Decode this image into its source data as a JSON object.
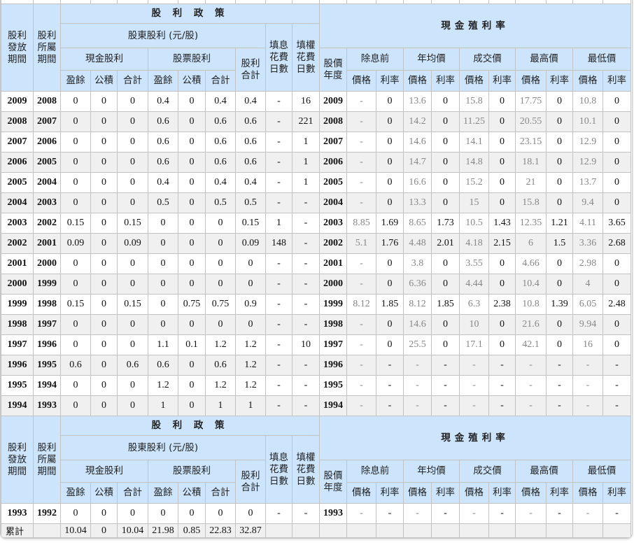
{
  "header": {
    "policy": "股 利 政 策",
    "yield": "現金殖利率",
    "issue_period": "股利發放期間",
    "belong_period": "股利所屬期間",
    "shareholder_div": "股東股利 (元/股)",
    "cash_div": "現金股利",
    "stock_div": "股票股利",
    "div_total": "股利合計",
    "fill_div_days": "填息花費日數",
    "fill_right_days": "填權花費日數",
    "price_year": "股價年度",
    "earnings": "盈餘",
    "reserve": "公積",
    "total": "合計",
    "groups": [
      "除息前",
      "年均價",
      "成交價",
      "最高價",
      "最低價"
    ],
    "price": "價格",
    "rate": "利率"
  },
  "rows_a": [
    [
      "2009",
      "2008",
      "0",
      "0",
      "0",
      "0.4",
      "0",
      "0.4",
      "0.4",
      "-",
      "16",
      "2009",
      "-",
      "0",
      "13.6",
      "0",
      "15.8",
      "0",
      "17.75",
      "0",
      "10.8",
      "0"
    ],
    [
      "2008",
      "2007",
      "0",
      "0",
      "0",
      "0.6",
      "0",
      "0.6",
      "0.6",
      "-",
      "221",
      "2008",
      "-",
      "0",
      "14.2",
      "0",
      "11.25",
      "0",
      "20.55",
      "0",
      "10.1",
      "0"
    ],
    [
      "2007",
      "2006",
      "0",
      "0",
      "0",
      "0.6",
      "0",
      "0.6",
      "0.6",
      "-",
      "1",
      "2007",
      "-",
      "0",
      "14.6",
      "0",
      "14.1",
      "0",
      "23.15",
      "0",
      "12.9",
      "0"
    ],
    [
      "2006",
      "2005",
      "0",
      "0",
      "0",
      "0.6",
      "0",
      "0.6",
      "0.6",
      "-",
      "1",
      "2006",
      "-",
      "0",
      "14.7",
      "0",
      "14.8",
      "0",
      "18.1",
      "0",
      "12.9",
      "0"
    ],
    [
      "2005",
      "2004",
      "0",
      "0",
      "0",
      "0.4",
      "0",
      "0.4",
      "0.4",
      "-",
      "1",
      "2005",
      "-",
      "0",
      "16.6",
      "0",
      "15.2",
      "0",
      "21",
      "0",
      "13.7",
      "0"
    ],
    [
      "2004",
      "2003",
      "0",
      "0",
      "0",
      "0.5",
      "0",
      "0.5",
      "0.5",
      "-",
      "-",
      "2004",
      "-",
      "0",
      "13.3",
      "0",
      "15",
      "0",
      "15.8",
      "0",
      "9.4",
      "0"
    ],
    [
      "2003",
      "2002",
      "0.15",
      "0",
      "0.15",
      "0",
      "0",
      "0",
      "0.15",
      "1",
      "-",
      "2003",
      "8.85",
      "1.69",
      "8.65",
      "1.73",
      "10.5",
      "1.43",
      "12.35",
      "1.21",
      "4.11",
      "3.65"
    ],
    [
      "2002",
      "2001",
      "0.09",
      "0",
      "0.09",
      "0",
      "0",
      "0",
      "0.09",
      "148",
      "-",
      "2002",
      "5.1",
      "1.76",
      "4.48",
      "2.01",
      "4.18",
      "2.15",
      "6",
      "1.5",
      "3.36",
      "2.68"
    ],
    [
      "2001",
      "2000",
      "0",
      "0",
      "0",
      "0",
      "0",
      "0",
      "0",
      "-",
      "-",
      "2001",
      "-",
      "0",
      "3.8",
      "0",
      "3.55",
      "0",
      "4.66",
      "0",
      "2.98",
      "0"
    ],
    [
      "2000",
      "1999",
      "0",
      "0",
      "0",
      "0",
      "0",
      "0",
      "0",
      "-",
      "-",
      "2000",
      "-",
      "0",
      "6.36",
      "0",
      "4.44",
      "0",
      "10.4",
      "0",
      "4",
      "0"
    ],
    [
      "1999",
      "1998",
      "0.15",
      "0",
      "0.15",
      "0",
      "0.75",
      "0.75",
      "0.9",
      "-",
      "-",
      "1999",
      "8.12",
      "1.85",
      "8.12",
      "1.85",
      "6.3",
      "2.38",
      "10.8",
      "1.39",
      "6.05",
      "2.48"
    ],
    [
      "1998",
      "1997",
      "0",
      "0",
      "0",
      "0",
      "0",
      "0",
      "0",
      "-",
      "-",
      "1998",
      "-",
      "0",
      "14.6",
      "0",
      "10",
      "0",
      "21.6",
      "0",
      "9.94",
      "0"
    ],
    [
      "1997",
      "1996",
      "0",
      "0",
      "0",
      "1.1",
      "0.1",
      "1.2",
      "1.2",
      "-",
      "10",
      "1997",
      "-",
      "0",
      "25.5",
      "0",
      "17.1",
      "0",
      "42.1",
      "0",
      "16",
      "0"
    ],
    [
      "1996",
      "1995",
      "0.6",
      "0",
      "0.6",
      "0.6",
      "0",
      "0.6",
      "1.2",
      "-",
      "-",
      "1996",
      "-",
      "-",
      "-",
      "-",
      "-",
      "-",
      "-",
      "-",
      "-",
      "-"
    ],
    [
      "1995",
      "1994",
      "0",
      "0",
      "0",
      "1.2",
      "0",
      "1.2",
      "1.2",
      "-",
      "-",
      "1995",
      "-",
      "-",
      "-",
      "-",
      "-",
      "-",
      "-",
      "-",
      "-",
      "-"
    ],
    [
      "1994",
      "1993",
      "0",
      "0",
      "0",
      "1",
      "0",
      "1",
      "1",
      "-",
      "-",
      "1994",
      "-",
      "-",
      "-",
      "-",
      "-",
      "-",
      "-",
      "-",
      "-",
      "-"
    ]
  ],
  "rows_b": [
    [
      "1993",
      "1992",
      "0",
      "0",
      "0",
      "0",
      "0",
      "0",
      "0",
      "-",
      "-",
      "1993",
      "-",
      "-",
      "-",
      "-",
      "-",
      "-",
      "-",
      "-",
      "-",
      "-"
    ]
  ],
  "total": {
    "label": "累計",
    "values": [
      "10.04",
      "0",
      "10.04",
      "21.98",
      "0.85",
      "22.83",
      "32.87"
    ]
  }
}
